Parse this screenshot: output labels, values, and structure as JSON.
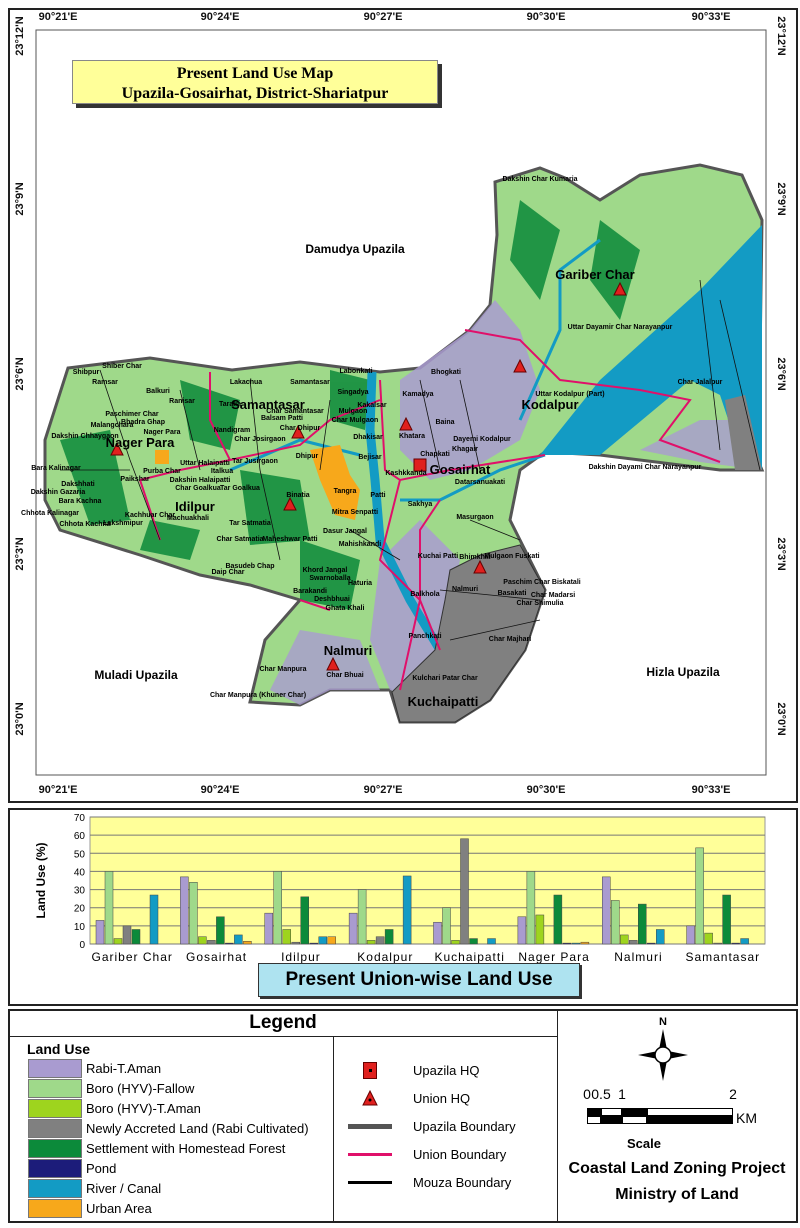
{
  "map": {
    "title_line1": "Present Land Use  Map",
    "title_line2": "Upazila-Gosairhat, District-Shariatpur",
    "longitudes": [
      "90°21'E",
      "90°24'E",
      "90°27'E",
      "90°30'E",
      "90°33'E"
    ],
    "latitudes": [
      "23°12'N",
      "23°9'N",
      "23°6'N",
      "23°3'N",
      "23°0'N"
    ],
    "neighbours": [
      "Damudya Upazila",
      "Muladi Upazila",
      "Hizla Upazila"
    ],
    "unions": [
      "Gariber Char",
      "Kodalpur",
      "Samantasar",
      "Nager Para",
      "Idilpur",
      "Gosairhat",
      "Nalmuri",
      "Kuchaipatti"
    ],
    "mouzas": [
      "Shibpur",
      "Shiber Char",
      "Ramsar",
      "Balkuri",
      "Ranisar",
      "Paschimer Char",
      "Bhadra Ghap",
      "Malangchara",
      "Nager Para",
      "Dakshin Chhaygaon",
      "Bara Kalinagar",
      "Dakshhati",
      "Dakshin Gazaria",
      "Bara Kachna",
      "Chhota Kalinagar",
      "Chhota Kachna",
      "Purba Char",
      "Paikshar",
      "Uttar Halaipatti",
      "Italkua",
      "Dakshin Halaipatti",
      "Char Goalkua",
      "Tar Goalkua",
      "Kachhuar Char",
      "Machuakhali",
      "Lakshmipur",
      "Tar Satmatia",
      "Char Satmatia",
      "Maheshwar Patti",
      "Basudeb Chap",
      "Daip Char",
      "Lakachua",
      "Taralia",
      "Samantasar",
      "Char Samantasar",
      "Balsam Patti",
      "Char Dhipur",
      "Nandigram",
      "Char Josirgaon",
      "Tar Jusirgaon",
      "Dhipur",
      "Binatia",
      "Tangra",
      "Mitra Senpatti",
      "Dasur Jangal",
      "Mahishkandi",
      "Khord Jangal",
      "Swarnoballa",
      "Haturia",
      "Barakandi",
      "Deshbhuai",
      "Ghata Khali",
      "Labonkati",
      "Singadya",
      "Kakalsar",
      "Mulgaon",
      "Char Mulgaon",
      "Dhakisar",
      "Bejisar",
      "Patti",
      "Kashkkanda",
      "Sakhya",
      "Bhogkati",
      "Kamadya",
      "Baina",
      "Khatara",
      "Dayemi Kodalpur",
      "Chapkati",
      "Khagair",
      "Datarsanuakati",
      "Masurgaon",
      "Kuchai Patti",
      "Bhimkhili",
      "Mulgaon Fuskati",
      "Nalmuri",
      "Basakati",
      "Paschim Char Biskatali",
      "Char Madarsi",
      "Char Shimulia",
      "Balkhola",
      "Panchkati",
      "Char Majhari",
      "Kulchari Patar Char",
      "Char Manpura",
      "Char Bhuai",
      "Char Manpura (Khuner Char)",
      "Dakshin Char Kumaria",
      "Uttar Dayamir Char Narayanpur",
      "Char Jalalpur",
      "Uttar Kodalpur (Part)",
      "Dakshin Dayami Char Narayanpur"
    ]
  },
  "chart_data": {
    "type": "bar",
    "title": "Present Union-wise Land Use",
    "xlabel": "",
    "ylabel": "Land Use (%)",
    "ylim": [
      0,
      70
    ],
    "yticks": [
      "0",
      "10",
      "20",
      "30",
      "40",
      "50",
      "60",
      "70"
    ],
    "grid": true,
    "categories": [
      "Gariber Char",
      "Gosairhat",
      "Idilpur",
      "Kodalpur",
      "Kuchaipatti",
      "Nager Para",
      "Nalmuri",
      "Samantasar"
    ],
    "series": [
      {
        "name": "Rabi-T.Aman",
        "color": "#a99bd0",
        "values": [
          13,
          37,
          17,
          17,
          12,
          15,
          37,
          10
        ]
      },
      {
        "name": "Boro (HYV)-Fallow",
        "color": "#9fd98a",
        "values": [
          40,
          34,
          40,
          30,
          20,
          40,
          24,
          53
        ]
      },
      {
        "name": "Boro (HYV)-T.Aman",
        "color": "#9ed41e",
        "values": [
          3,
          4,
          8,
          2,
          2,
          16,
          5,
          6
        ]
      },
      {
        "name": "Newly Accreted Land (Rabi Cultivated)",
        "color": "#808080",
        "values": [
          10,
          2,
          1,
          4,
          58,
          0,
          2,
          0.5
        ]
      },
      {
        "name": "Settlement with Homestead Forest",
        "color": "#0c8a3a",
        "values": [
          8,
          15,
          26,
          8,
          3,
          27,
          22,
          27
        ]
      },
      {
        "name": "Pond",
        "color": "#1c1c7a",
        "values": [
          0,
          0.5,
          0.5,
          0,
          0,
          0.5,
          0.5,
          0.5
        ]
      },
      {
        "name": "River / Canal",
        "color": "#139bc4",
        "values": [
          27,
          5,
          4,
          37.5,
          3,
          0.5,
          8,
          3
        ]
      },
      {
        "name": "Urban Area",
        "color": "#f7a81b",
        "values": [
          0,
          1.5,
          4,
          0,
          0,
          1,
          0,
          0
        ]
      }
    ]
  },
  "legend": {
    "title": "Legend",
    "land_use_heading": "Land Use",
    "symbols": [
      "Upazila HQ",
      "Union HQ",
      "Upazila Boundary",
      "Union Boundary",
      "Mouza Boundary"
    ],
    "north": "N",
    "scale_ticks": [
      "0",
      "0.5",
      "1",
      "2"
    ],
    "scale_unit": "KM",
    "scale_label": "Scale",
    "org_line1": "Coastal Land Zoning Project",
    "org_line2": "Ministry of Land"
  },
  "colors": {
    "chart_bg": "#ffff99",
    "title_bg": "#ffff99",
    "chart_title_bg": "#aee3f0",
    "union_boundary": "#e0106a",
    "upazila_hq": "#e0201e"
  }
}
